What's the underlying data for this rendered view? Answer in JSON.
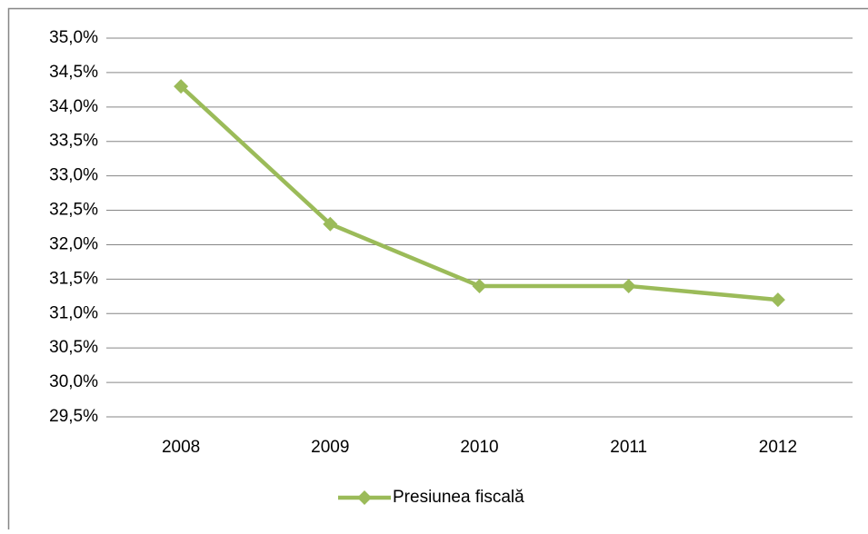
{
  "chart_data": {
    "type": "line",
    "categories": [
      "2008",
      "2009",
      "2010",
      "2011",
      "2012"
    ],
    "series": [
      {
        "name": "Presiunea fiscală",
        "color": "#9bbb59",
        "values": [
          34.3,
          32.3,
          31.4,
          31.4,
          31.2
        ]
      }
    ],
    "ylim": [
      29.5,
      35.0
    ],
    "yticks": [
      {
        "value": 29.5,
        "label": "29,5%"
      },
      {
        "value": 30.0,
        "label": "30,0%"
      },
      {
        "value": 30.5,
        "label": "30,5%"
      },
      {
        "value": 31.0,
        "label": "31,0%"
      },
      {
        "value": 31.5,
        "label": "31,5%"
      },
      {
        "value": 32.0,
        "label": "32,0%"
      },
      {
        "value": 32.5,
        "label": "32,5%"
      },
      {
        "value": 33.0,
        "label": "33,0%"
      },
      {
        "value": 33.5,
        "label": "33,5%"
      },
      {
        "value": 34.0,
        "label": "34,0%"
      },
      {
        "value": 34.5,
        "label": "34,5%"
      },
      {
        "value": 35.0,
        "label": "35,0%"
      }
    ],
    "grid": true,
    "legend": "bottom"
  }
}
